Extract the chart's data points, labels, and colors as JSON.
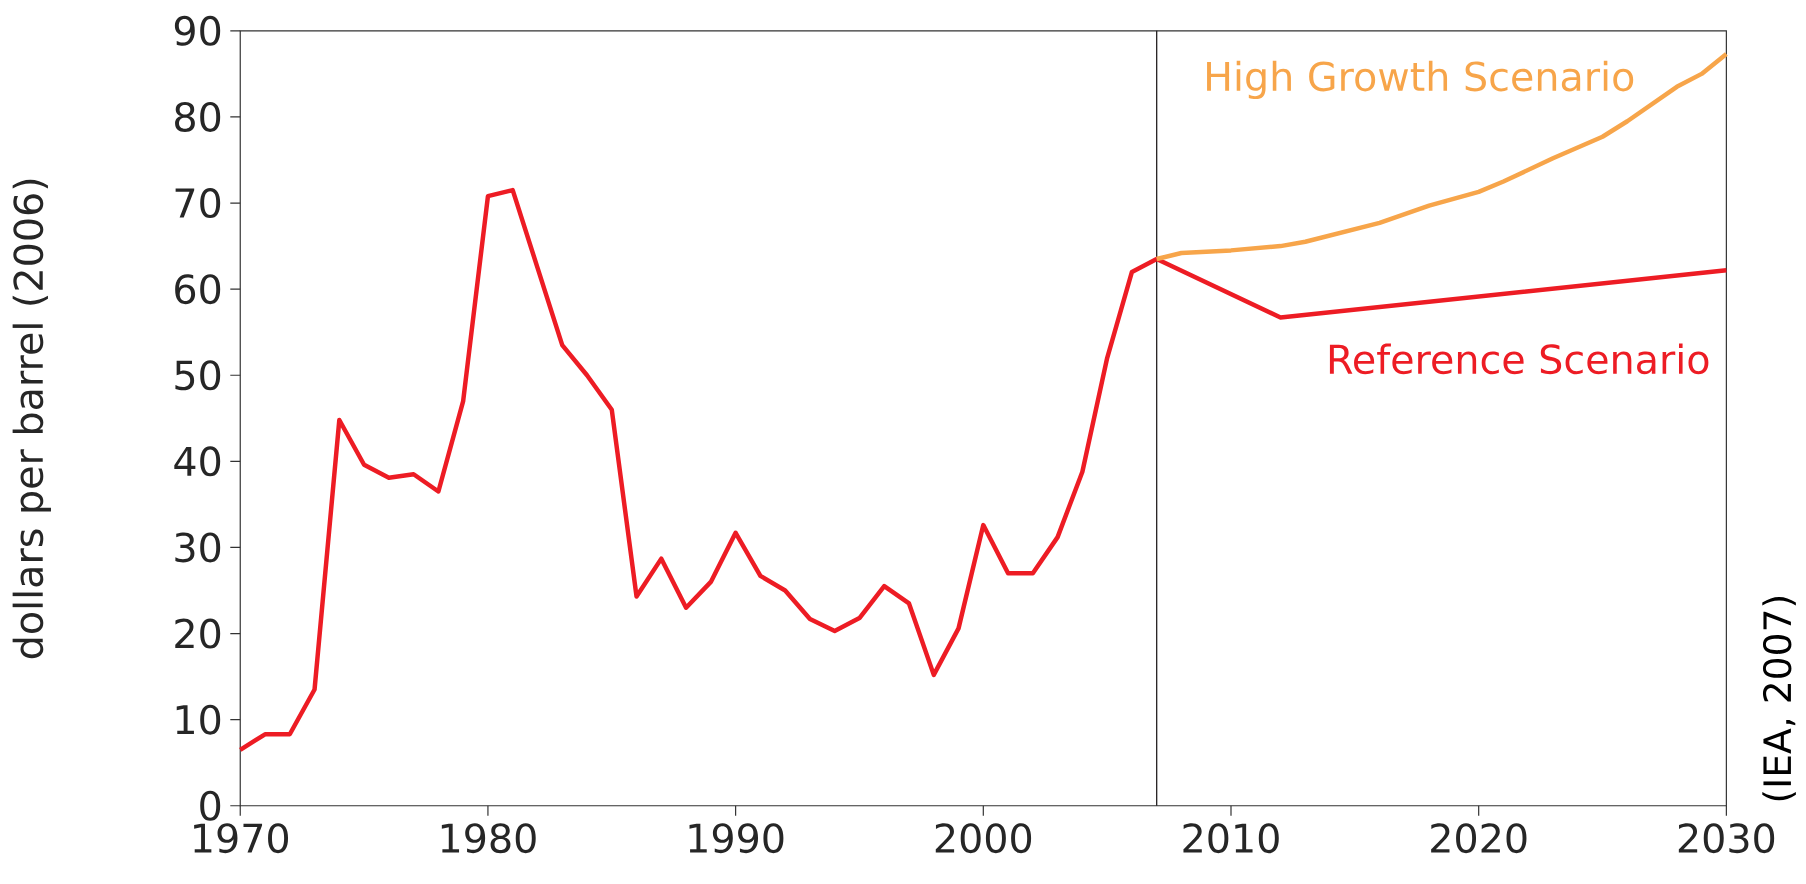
{
  "chart_data": {
    "type": "line",
    "ylabel": "dollars per barrel (2006)",
    "annotations": [
      "(IEA, 2007)"
    ],
    "xlim": [
      1970,
      2030
    ],
    "xticks": [
      1970,
      1980,
      1990,
      2000,
      2010,
      2020,
      2030
    ],
    "ylim": [
      0,
      90
    ],
    "yticks": [
      0,
      10,
      20,
      30,
      40,
      50,
      60,
      70,
      80,
      90
    ],
    "ref_lines": [
      {
        "axis": "x",
        "value": 2007,
        "color": "#231f20"
      }
    ],
    "series": [
      {
        "name": "High Growth Scenario",
        "color": "#f7a54a",
        "x": [
          2007,
          2008,
          2010,
          2012,
          2013,
          2016,
          2018,
          2020,
          2021,
          2023,
          2025,
          2026,
          2027,
          2028,
          2029,
          2030
        ],
        "values": [
          63.5,
          64.2,
          64.5,
          65,
          65.5,
          67.7,
          69.7,
          71.3,
          72.5,
          75.2,
          77.7,
          79.5,
          81.5,
          83.5,
          85,
          87.3
        ]
      },
      {
        "name": "Reference Scenario",
        "color": "#ed1c24",
        "x": [
          1970,
          1971,
          1972,
          1973,
          1974,
          1975,
          1976,
          1977,
          1978,
          1979,
          1980,
          1981,
          1982,
          1983,
          1984,
          1985,
          1986,
          1987,
          1988,
          1989,
          1990,
          1991,
          1992,
          1993,
          1994,
          1995,
          1996,
          1997,
          1998,
          1999,
          2000,
          2001,
          2002,
          2003,
          2004,
          2005,
          2006,
          2007,
          2012,
          2030
        ],
        "values": [
          6.5,
          8.3,
          8.3,
          13.5,
          44.8,
          39.6,
          38.1,
          38.5,
          36.5,
          47,
          70.8,
          71.5,
          62.5,
          53.5,
          50,
          46,
          24.3,
          28.7,
          23,
          26,
          31.7,
          26.7,
          25,
          21.7,
          20.3,
          21.8,
          25.5,
          23.5,
          15.2,
          20.6,
          32.6,
          27,
          27,
          31.2,
          38.8,
          52,
          62,
          63.5,
          56.7,
          62.2
        ]
      }
    ]
  }
}
